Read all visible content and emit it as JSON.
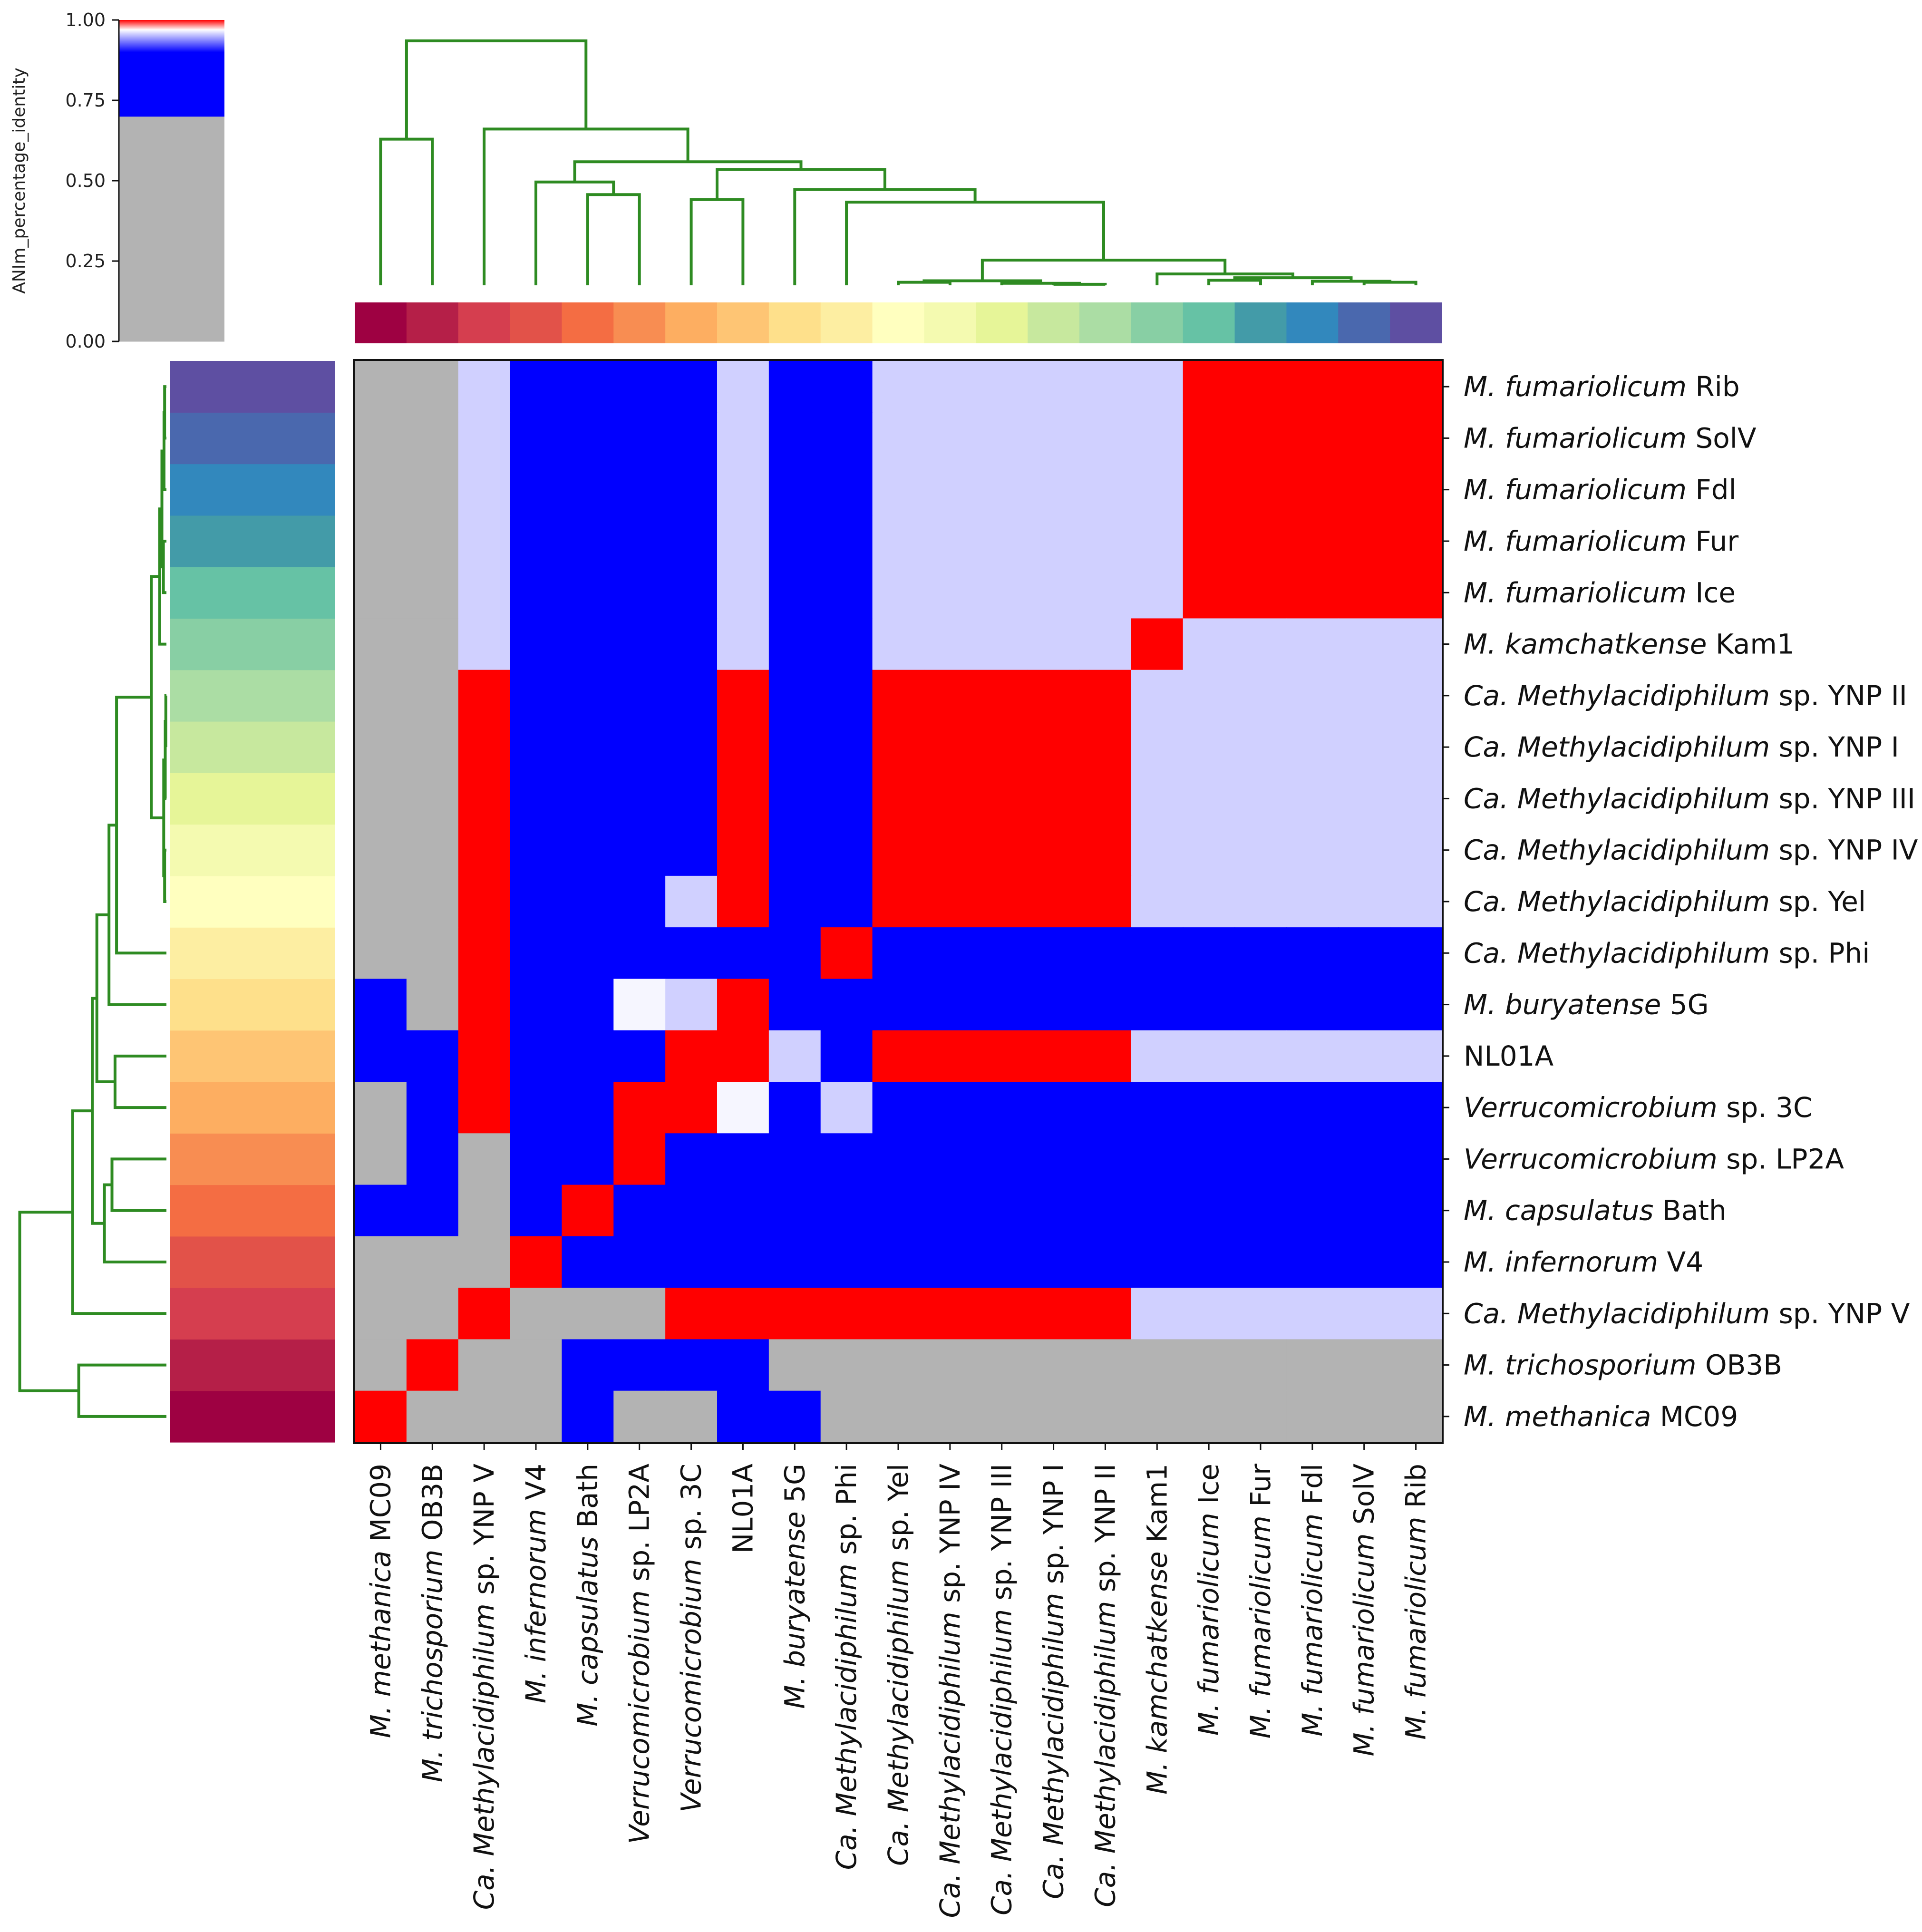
{
  "chart_data": {
    "type": "heatmap",
    "title": "",
    "colorbar": {
      "label": "ANIm_percentage_identity",
      "ticks": [
        "0.00",
        "0.25",
        "0.50",
        "0.75",
        "1.00"
      ],
      "tick_values": [
        0,
        0.25,
        0.5,
        0.75,
        1.0
      ],
      "segments": [
        {
          "from": 0.0,
          "to": 0.7,
          "color": "#b3b3b3"
        },
        {
          "from": 0.7,
          "to": 0.9,
          "color": "#0000ff"
        },
        {
          "from": 0.9,
          "to": 0.97,
          "gradient": [
            "#0000ff",
            "#ffffff"
          ]
        },
        {
          "from": 0.97,
          "to": 1.0,
          "gradient": [
            "#ffffff",
            "#ff0000"
          ]
        }
      ]
    },
    "genomes": [
      {
        "genus": "M. methanica",
        "strain": "MC09"
      },
      {
        "genus": "M. trichosporium",
        "strain": "OB3B"
      },
      {
        "genus": "Ca. Methylacidiphilum",
        "strain": "sp. YNP V"
      },
      {
        "genus": "M. infernorum",
        "strain": "V4"
      },
      {
        "genus": "M. capsulatus",
        "strain": "Bath"
      },
      {
        "genus": "Verrucomicrobium",
        "strain": "sp. LP2A"
      },
      {
        "genus": "Verrucomicrobium",
        "strain": "sp. 3C"
      },
      {
        "genus": "",
        "strain": "NL01A"
      },
      {
        "genus": "M. buryatense",
        "strain": "5G"
      },
      {
        "genus": "Ca. Methylacidiphilum",
        "strain": "sp. Phi"
      },
      {
        "genus": "Ca. Methylacidiphilum",
        "strain": "sp. Yel"
      },
      {
        "genus": "Ca. Methylacidiphilum",
        "strain": "sp. YNP IV"
      },
      {
        "genus": "Ca. Methylacidiphilum",
        "strain": "sp. YNP III"
      },
      {
        "genus": "Ca. Methylacidiphilum",
        "strain": "sp. YNP I"
      },
      {
        "genus": "Ca. Methylacidiphilum",
        "strain": "sp. YNP II"
      },
      {
        "genus": "M. kamchatkense",
        "strain": "Kam1"
      },
      {
        "genus": "M. fumariolicum",
        "strain": "Ice"
      },
      {
        "genus": "M. fumariolicum",
        "strain": "Fur"
      },
      {
        "genus": "M. fumariolicum",
        "strain": "Fdl"
      },
      {
        "genus": "M. fumariolicum",
        "strain": "SolV"
      },
      {
        "genus": "M. fumariolicum",
        "strain": "Rib"
      }
    ],
    "class_colors": [
      "#9e0142",
      "#b51f48",
      "#d53e4f",
      "#e25249",
      "#f46d43",
      "#f88d52",
      "#fdae61",
      "#fec574",
      "#fee08b",
      "#fdeea2",
      "#ffffbf",
      "#f4fab0",
      "#e6f598",
      "#c7e89e",
      "#abdda4",
      "#88cfa4",
      "#66c2a5",
      "#439ba8",
      "#3288bd",
      "#4a68ae",
      "#5e4fa2"
    ],
    "matrix_rows_top_to_bottom": [
      "GGLBBBBLBBLLLLLLRRRRR",
      "GGLBBBBLBBLLLLLLRRRRR",
      "GGLBBBBLBBLLLLLLRRRRR",
      "GGLBBBBLBBLLLLLLRRRRR",
      "GGLBBBBLBBLLLLLLRRRRR",
      "GGLBBBBLBBLLLLLRLLLLL",
      "GGRBBBBRBBRRRRRLLLLLL",
      "GGRBBBBRBBRRRRRLLLLLL",
      "GGRBBBBRBBRRRRRLLLLLL",
      "GGRBBBBRBBRRRRRLLLLLL",
      "GGRBBBLRBBRRRRRLLLLLL",
      "GGRBBBBBBRBBBBBBBBBBB",
      "BGRBBWLRBBBBBBBBBBBBB",
      "BBRBBBRRLBRRRRRLLLLLL",
      "GBRBBRRWBLBBBBBBBBBBB",
      "GBGBBRBBBBBBBBBBBBBBB",
      "BBGBRBBBBBBBBBBBBBBBB",
      "GGGRBBBBBBBBBBBBBBBBB",
      "GGRGGGRRRRRRRRRLLLLLL",
      "GRGGBBBBGGGGGGGGGGGGG",
      "RGGGBGGBBGGGGGGGGGGGG"
    ],
    "matrix_legend": {
      "R": "~1.00 identity",
      "B": "~0.80-0.90 identity",
      "L": "~0.95 identity",
      "W": "~0.97 identity",
      "G": "< 0.70 identity"
    },
    "dendrogram": "((M. methanica MC09, M. trichosporium OB3B), (Ca. Methylacidiphilum sp. YNP V, ((M. infernorum V4, (M. capsulatus Bath, Verrucomicrobium sp. LP2A)), ((Verrucomicrobium sp. 3C, NL01A), (M. buryatense 5G, (Ca. Methylacidiphilum sp. Phi, ((Yel, IV, III, I, II), (Kam1, (Ice, Fur, Fdl, SolV, Rib)))))))))"
  }
}
